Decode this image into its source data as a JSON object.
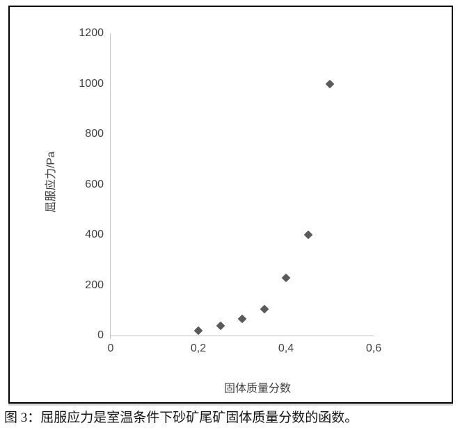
{
  "figure": {
    "caption": "图 3：屈服应力是室温条件下砂矿尾矿固体质量分数的函数。"
  },
  "chart_data": {
    "type": "scatter",
    "title": "",
    "xlabel": "固体质量分数",
    "ylabel": "屈服应力/Pa",
    "xlim": [
      0,
      0.6
    ],
    "ylim": [
      0,
      1200
    ],
    "x": [
      0.2,
      0.25,
      0.3,
      0.35,
      0.4,
      0.45,
      0.5
    ],
    "y": [
      20,
      40,
      65,
      105,
      230,
      400,
      1000
    ],
    "x_tick_labels": [
      "0",
      "0,2",
      "0,4",
      "0,6"
    ],
    "x_tick_values": [
      0,
      0.2,
      0.4,
      0.6
    ],
    "y_tick_labels": [
      "0",
      "200",
      "400",
      "600",
      "800",
      "1000",
      "1200"
    ],
    "y_tick_values": [
      0,
      200,
      400,
      600,
      800,
      1000,
      1200
    ],
    "grid": false,
    "legend": null,
    "marker": "diamond",
    "marker_color": "#5a5a5a",
    "axis_color": "#c3c3c3",
    "tick_label_color": "#3f3f3f"
  }
}
